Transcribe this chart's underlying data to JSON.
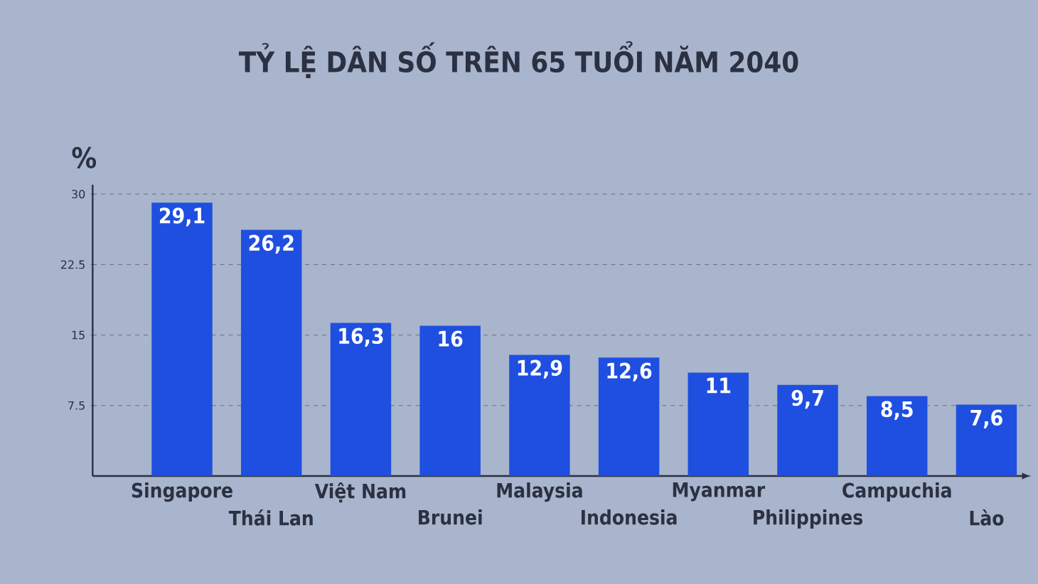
{
  "chart_data": {
    "type": "bar",
    "title": "TỶ LỆ DÂN SỐ TRÊN 65 TUỔI NĂM 2040",
    "ylabel": "%",
    "categories": [
      "Singapore",
      "Thái Lan",
      "Việt Nam",
      "Brunei",
      "Malaysia",
      "Indonesia",
      "Myanmar",
      "Philippines",
      "Campuchia",
      "Lào"
    ],
    "values": [
      29.1,
      26.2,
      16.3,
      16,
      12.9,
      12.6,
      11,
      9.7,
      8.5,
      7.6
    ],
    "value_labels": [
      "29,1",
      "26,2",
      "16,3",
      "16",
      "12,9",
      "12,6",
      "11",
      "9,7",
      "8,5",
      "7,6"
    ],
    "color": "#1f4fe0",
    "ylim": [
      0,
      31
    ],
    "yticks": [
      7.5,
      22.5,
      15,
      30
    ],
    "grid": "y"
  }
}
